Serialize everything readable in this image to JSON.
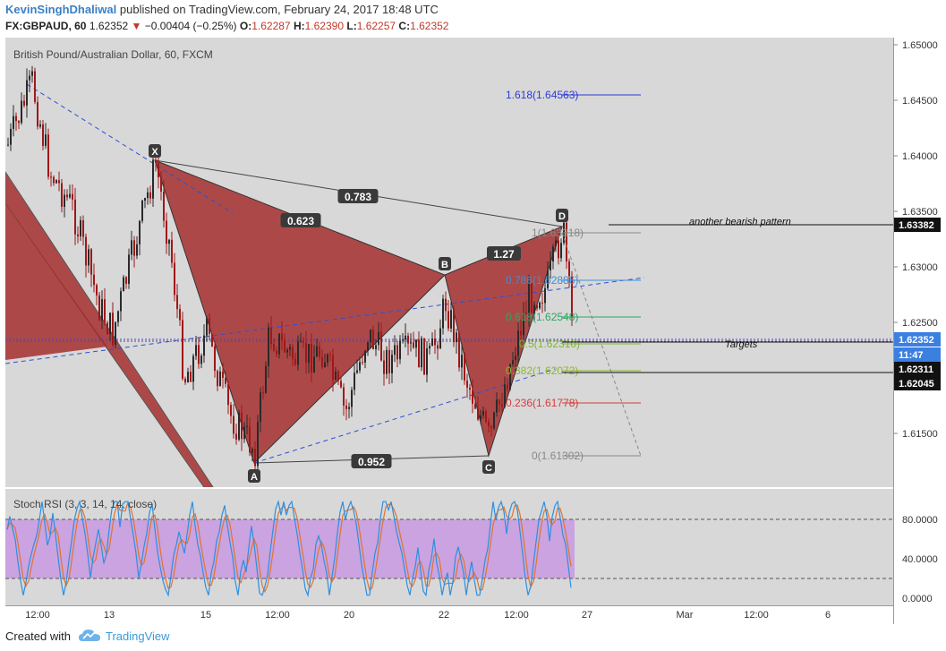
{
  "header": {
    "user": "KevinSinghDhaliwal",
    "published": "published on TradingView.com, February 24, 2017 18:48 UTC",
    "symbol": "FX:GBPAUD, 60",
    "last": "1.62352",
    "change": "−0.00404 (−0.25%)",
    "o_label": "O:",
    "o": "1.62287",
    "h_label": "H:",
    "h": "1.62390",
    "l_label": "L:",
    "l": "1.62257",
    "c_label": "C:",
    "c": "1.62352"
  },
  "chart": {
    "title": "British Pound/Australian Dollar, 60, FXCM",
    "rsi_title": "Stoch RSI (3, 3, 14, 14, close)",
    "price_ticks": [
      "1.65000",
      "1.64500",
      "1.64000",
      "1.63500",
      "1.63000",
      "1.62500",
      "1.62000",
      "1.61500"
    ],
    "price_badges": {
      "target": "1.63382",
      "last": "1.62352",
      "time": "11:47",
      "b1": "1.62311",
      "b2": "1.62045"
    },
    "rsi_ticks": [
      "80.0000",
      "40.0000",
      "0.0000"
    ],
    "x_ticks": [
      "12:00",
      "13",
      "15",
      "12:00",
      "20",
      "22",
      "12:00",
      "27",
      "Mar",
      "12:00",
      "6"
    ],
    "points": {
      "X": "X",
      "A": "A",
      "B": "B",
      "C": "C",
      "D": "D"
    },
    "ratios": {
      "xb": "0.623",
      "xd": "0.783",
      "bd": "1.27",
      "ac": "0.952"
    },
    "fib": {
      "f1618": "1.618(1.64563)",
      "f1": "1(1.63318)",
      "f786": "0.786(1.62886)",
      "f618": "0.618(1.62548)",
      "f5": "0.5(1.62310)",
      "f382": "0.382(1.62072)",
      "f236": "0.236(1.61778)",
      "f0": "0(1.61302)"
    },
    "notes": {
      "another": "another bearish pattern",
      "targets": "Targets"
    }
  },
  "footer": {
    "created": "Created with",
    "brand": "TradingView"
  },
  "colors": {
    "bull": "#2a2a2a",
    "bear": "#a01818",
    "pattern": "#a5302f",
    "rsi_k": "#2e8fe0",
    "rsi_d": "#e0742e",
    "rsi_band": "#caa3e0"
  }
}
